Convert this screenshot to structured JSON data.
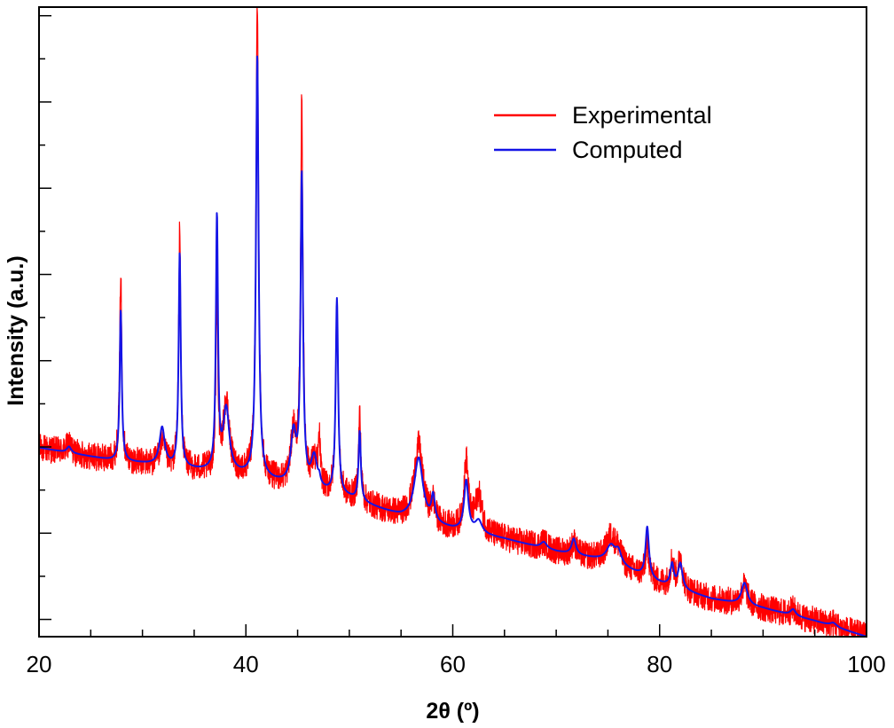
{
  "chart_data": {
    "type": "line",
    "title": "",
    "xlabel": "2θ (º)",
    "ylabel": "Intensity (a.u.)",
    "xlim": [
      20,
      100
    ],
    "ylim": [
      0,
      100
    ],
    "x_ticks": [
      20,
      40,
      60,
      80,
      100
    ],
    "x_tick_labels": [
      "20",
      "40",
      "60",
      "80",
      "100"
    ],
    "y_tick_count": 7,
    "y_ticks_labeled": false,
    "grid": false,
    "legend_position": "top-right",
    "background": {
      "start": [
        20,
        30
      ],
      "end": [
        100,
        0
      ],
      "knots": [
        [
          20,
          30.0
        ],
        [
          27,
          28.0
        ],
        [
          30,
          27.5
        ],
        [
          40,
          25.5
        ],
        [
          50,
          22.0
        ],
        [
          55,
          19.0
        ],
        [
          60,
          17.0
        ],
        [
          65,
          15.5
        ],
        [
          70,
          13.5
        ],
        [
          75,
          12.0
        ],
        [
          80,
          8.5
        ],
        [
          85,
          6.0
        ],
        [
          90,
          4.5
        ],
        [
          95,
          2.5
        ],
        [
          100,
          0.0
        ]
      ]
    },
    "peaks": [
      {
        "pos": 22.9,
        "experimental": 1.5,
        "computed": 1.0,
        "width": 0.25
      },
      {
        "pos": 27.9,
        "experimental": 30.0,
        "computed": 24.0,
        "width": 0.12
      },
      {
        "pos": 31.9,
        "experimental": 4.0,
        "computed": 6.0,
        "width": 0.3
      },
      {
        "pos": 33.6,
        "experimental": 38.0,
        "computed": 34.0,
        "width": 0.12
      },
      {
        "pos": 37.2,
        "experimental": 26.0,
        "computed": 40.0,
        "width": 0.12
      },
      {
        "pos": 38.1,
        "experimental": 11.0,
        "computed": 10.0,
        "width": 0.35
      },
      {
        "pos": 41.1,
        "experimental": 75.0,
        "computed": 67.0,
        "width": 0.15
      },
      {
        "pos": 44.6,
        "experimental": 8.0,
        "computed": 8.0,
        "width": 0.3
      },
      {
        "pos": 45.4,
        "experimental": 60.0,
        "computed": 49.0,
        "width": 0.14
      },
      {
        "pos": 46.6,
        "experimental": 4.0,
        "computed": 5.0,
        "width": 0.35
      },
      {
        "pos": 47.1,
        "experimental": 7.0,
        "computed": 1.0,
        "width": 0.12
      },
      {
        "pos": 48.8,
        "experimental": 31.0,
        "computed": 31.0,
        "width": 0.14
      },
      {
        "pos": 51.0,
        "experimental": 14.0,
        "computed": 11.0,
        "width": 0.13
      },
      {
        "pos": 56.7,
        "experimental": 12.0,
        "computed": 10.0,
        "width": 0.5
      },
      {
        "pos": 58.1,
        "experimental": 3.0,
        "computed": 4.0,
        "width": 0.2
      },
      {
        "pos": 61.3,
        "experimental": 11.0,
        "computed": 8.0,
        "width": 0.25
      },
      {
        "pos": 62.5,
        "experimental": 6.0,
        "computed": 2.0,
        "width": 0.4
      },
      {
        "pos": 68.8,
        "experimental": 1.0,
        "computed": 1.0,
        "width": 0.35
      },
      {
        "pos": 71.7,
        "experimental": 2.0,
        "computed": 2.5,
        "width": 0.25
      },
      {
        "pos": 75.3,
        "experimental": 4.0,
        "computed": 2.5,
        "width": 0.5
      },
      {
        "pos": 76.0,
        "experimental": 2.0,
        "computed": 2.0,
        "width": 0.35
      },
      {
        "pos": 78.8,
        "experimental": 5.0,
        "computed": 8.0,
        "width": 0.2
      },
      {
        "pos": 81.2,
        "experimental": 4.0,
        "computed": 3.5,
        "width": 0.2
      },
      {
        "pos": 82.0,
        "experimental": 5.0,
        "computed": 4.0,
        "width": 0.25
      },
      {
        "pos": 88.2,
        "experimental": 3.0,
        "computed": 3.5,
        "width": 0.35
      },
      {
        "pos": 92.9,
        "experimental": 1.0,
        "computed": 1.0,
        "width": 0.3
      },
      {
        "pos": 96.8,
        "experimental": 0.6,
        "computed": 0.6,
        "width": 0.4
      }
    ],
    "series": [
      {
        "name": "Experimental",
        "color": "#ff0000",
        "noise": 2.2
      },
      {
        "name": "Computed",
        "color": "#1414e6",
        "noise": 0
      }
    ]
  }
}
